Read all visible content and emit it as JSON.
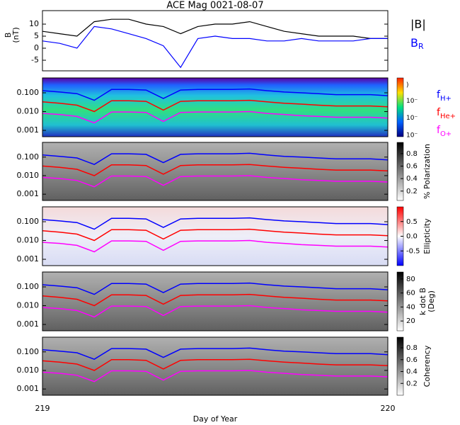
{
  "chart_data": [
    {
      "type": "line",
      "title": "ACE Mag 0021-08-07",
      "ylabel": [
        "B",
        "(nT)"
      ],
      "x": [
        219.0,
        219.05,
        219.1,
        219.15,
        219.2,
        219.25,
        219.3,
        219.35,
        219.4,
        219.45,
        219.5,
        219.55,
        219.6,
        219.65,
        219.7,
        219.75,
        219.8,
        219.85,
        219.9,
        219.95,
        220.0
      ],
      "series": [
        {
          "name": "|B|",
          "color": "#000000",
          "values": [
            7,
            6,
            5,
            11,
            12,
            12,
            10,
            9,
            6,
            9,
            10,
            10,
            11,
            9,
            7,
            6,
            5,
            5,
            5,
            4,
            4
          ]
        },
        {
          "name": "BR",
          "color": "#0000ff",
          "values": [
            3,
            2,
            0,
            9,
            8,
            6,
            4,
            1,
            -8,
            4,
            5,
            4,
            4,
            3,
            3,
            4,
            3,
            3,
            3,
            4,
            4
          ]
        }
      ],
      "xlim": [
        219,
        220
      ],
      "ylim": [
        -9.4,
        15.6
      ],
      "yticks": [
        10,
        5,
        0,
        -5
      ]
    },
    {
      "type": "spectrogram",
      "colormap": "rainbow",
      "xlim": [
        219,
        220
      ],
      "ylim": [
        0.00046,
        0.62
      ],
      "log_y": true,
      "yticks": [
        {
          "value": 0.1,
          "label": "0.100"
        },
        {
          "value": 0.01,
          "label": "0.010"
        },
        {
          "value": 0.001,
          "label": "0.001"
        }
      ],
      "colorbar_labels": [
        ")",
        "10⁻",
        "10⁻",
        "10⁻"
      ],
      "x": [
        219.0,
        219.05,
        219.1,
        219.15,
        219.2,
        219.25,
        219.3,
        219.35,
        219.4,
        219.45,
        219.5,
        219.55,
        219.6,
        219.65,
        219.7,
        219.75,
        219.8,
        219.85,
        219.9,
        219.95,
        220.0
      ],
      "series": [
        {
          "name": "fH+",
          "color": "#0000ff",
          "values": [
            0.13,
            0.11,
            0.09,
            0.04,
            0.15,
            0.15,
            0.14,
            0.05,
            0.14,
            0.15,
            0.15,
            0.15,
            0.16,
            0.13,
            0.11,
            0.1,
            0.09,
            0.08,
            0.08,
            0.08,
            0.07
          ]
        },
        {
          "name": "fHe+",
          "color": "#ff0000",
          "values": [
            0.033,
            0.028,
            0.022,
            0.01,
            0.038,
            0.038,
            0.035,
            0.012,
            0.035,
            0.038,
            0.038,
            0.038,
            0.04,
            0.033,
            0.028,
            0.025,
            0.022,
            0.02,
            0.02,
            0.02,
            0.018
          ]
        },
        {
          "name": "fO+",
          "color": "#ff00ff",
          "values": [
            0.008,
            0.007,
            0.0055,
            0.0025,
            0.0095,
            0.0095,
            0.009,
            0.003,
            0.009,
            0.0095,
            0.0095,
            0.0095,
            0.01,
            0.008,
            0.007,
            0.006,
            0.0055,
            0.005,
            0.005,
            0.005,
            0.0045
          ]
        }
      ]
    },
    {
      "type": "spectrogram",
      "colormap": "gray",
      "xlim": [
        219,
        220
      ],
      "ylim": [
        0.00046,
        0.62
      ],
      "log_y": true,
      "yticks": [
        {
          "value": 0.1,
          "label": "0.100"
        },
        {
          "value": 0.01,
          "label": "0.010"
        },
        {
          "value": 0.001,
          "label": "0.001"
        }
      ],
      "colorbar_label": "% Polarization",
      "clim": [
        0.05,
        0.98
      ],
      "cticks": [
        0.8,
        0.6,
        0.4,
        0.2
      ]
    },
    {
      "type": "spectrogram",
      "colormap": "bwr",
      "xlim": [
        219,
        220
      ],
      "ylim": [
        0.00046,
        0.62
      ],
      "log_y": true,
      "yticks": [
        {
          "value": 0.1,
          "label": "0.100"
        },
        {
          "value": 0.01,
          "label": "0.010"
        },
        {
          "value": 0.001,
          "label": "0.001"
        }
      ],
      "colorbar_label": "Ellipticity",
      "clim": [
        -1,
        1
      ],
      "cticks": [
        0.5,
        {
          "value": 0,
          "label": "0.0"
        },
        -0.5
      ]
    },
    {
      "type": "spectrogram",
      "colormap": "gray",
      "xlim": [
        219,
        220
      ],
      "ylim": [
        0.00046,
        0.62
      ],
      "log_y": true,
      "yticks": [
        {
          "value": 0.1,
          "label": "0.100"
        },
        {
          "value": 0.01,
          "label": "0.010"
        },
        {
          "value": 0.001,
          "label": "0.001"
        }
      ],
      "colorbar_label": [
        "k dot B",
        "(Deg)"
      ],
      "clim": [
        6,
        90
      ],
      "cticks": [
        80,
        60,
        40,
        20
      ]
    },
    {
      "type": "spectrogram",
      "colormap": "gray",
      "xlim": [
        219,
        220
      ],
      "ylim": [
        0.00046,
        0.62
      ],
      "log_y": true,
      "yticks": [
        {
          "value": 0.1,
          "label": "0.100"
        },
        {
          "value": 0.01,
          "label": "0.010"
        },
        {
          "value": 0.001,
          "label": "0.001"
        }
      ],
      "colorbar_label": "Coherency",
      "clim": [
        0.0,
        0.98
      ],
      "cticks": [
        0.8,
        0.6,
        0.4,
        0.2
      ],
      "xticks": [
        219,
        220
      ],
      "xlabel": "Day of Year"
    }
  ]
}
